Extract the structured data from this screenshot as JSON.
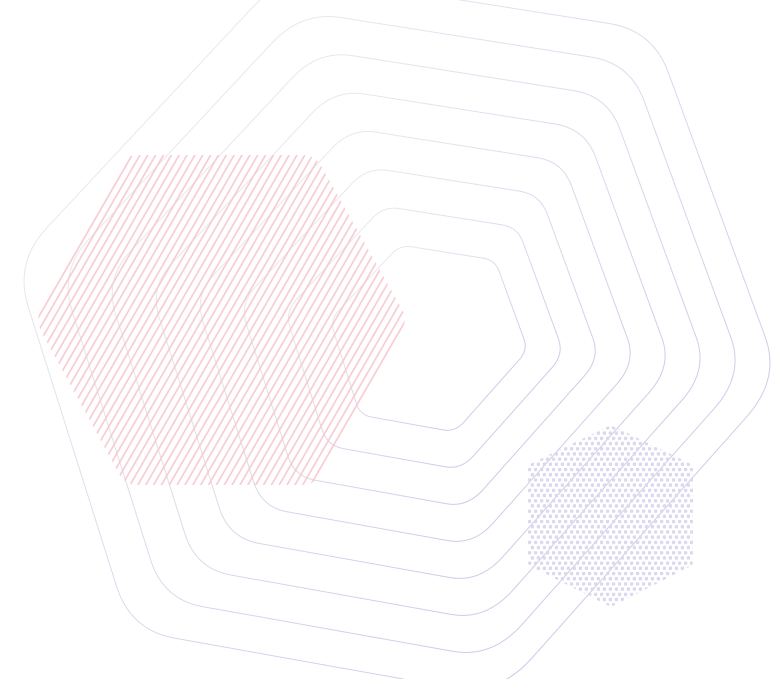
{
  "colors": {
    "background": "#ffffff",
    "hatch_stroke": "#f7c9d0",
    "dot_fill": "#dcd8ee",
    "outline_start": "#efeff3",
    "outline_end": "#c7c2e6"
  },
  "shapes": {
    "nested_outline_hexagons": 8,
    "hatched_hexagon": "diagonal-stripes",
    "dotted_hexagon": "dot-grid"
  }
}
